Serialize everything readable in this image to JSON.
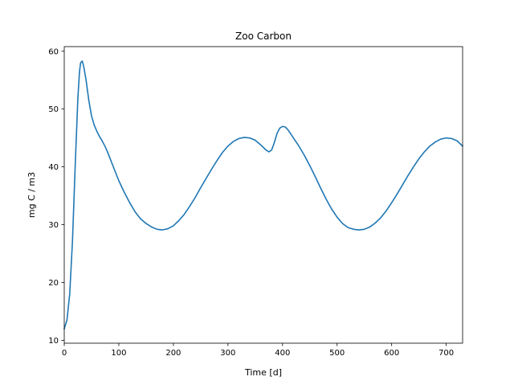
{
  "chart_data": {
    "type": "line",
    "title": "Zoo Carbon",
    "xlabel": "Time [d]",
    "ylabel": "mg C / m3",
    "xlim": [
      0,
      730
    ],
    "ylim": [
      9.5,
      60.8
    ],
    "xticks": [
      0,
      100,
      200,
      300,
      400,
      500,
      600,
      700
    ],
    "yticks": [
      10,
      20,
      30,
      40,
      50,
      60
    ],
    "grid": false,
    "legend": "none",
    "series": [
      {
        "color": "#1f77b4",
        "x": [
          0,
          5,
          10,
          15,
          20,
          25,
          28,
          30,
          33,
          36,
          40,
          45,
          50,
          55,
          60,
          65,
          70,
          75,
          80,
          90,
          100,
          110,
          120,
          130,
          140,
          150,
          160,
          170,
          180,
          190,
          200,
          210,
          220,
          230,
          240,
          250,
          260,
          270,
          280,
          290,
          300,
          310,
          320,
          330,
          340,
          350,
          360,
          370,
          375,
          380,
          385,
          390,
          395,
          400,
          405,
          410,
          415,
          420,
          430,
          440,
          450,
          460,
          470,
          480,
          490,
          500,
          510,
          520,
          530,
          540,
          550,
          560,
          570,
          580,
          590,
          600,
          610,
          620,
          630,
          640,
          650,
          660,
          670,
          680,
          690,
          700,
          710,
          720,
          730
        ],
        "y": [
          12.0,
          13.5,
          18.0,
          27.0,
          40.0,
          52.0,
          56.5,
          58.0,
          58.3,
          57.2,
          55.0,
          51.5,
          48.8,
          47.2,
          46.1,
          45.2,
          44.4,
          43.5,
          42.4,
          40.0,
          37.6,
          35.6,
          33.8,
          32.2,
          31.0,
          30.2,
          29.6,
          29.2,
          29.1,
          29.3,
          29.8,
          30.7,
          31.8,
          33.2,
          34.7,
          36.4,
          38.0,
          39.6,
          41.1,
          42.5,
          43.6,
          44.4,
          44.9,
          45.1,
          45.0,
          44.6,
          43.8,
          42.9,
          42.6,
          42.9,
          44.2,
          45.8,
          46.7,
          47.0,
          46.9,
          46.4,
          45.7,
          45.0,
          43.6,
          42.0,
          40.2,
          38.3,
          36.3,
          34.4,
          32.7,
          31.3,
          30.2,
          29.5,
          29.2,
          29.1,
          29.2,
          29.6,
          30.3,
          31.2,
          32.4,
          33.8,
          35.3,
          36.9,
          38.5,
          40.0,
          41.4,
          42.6,
          43.6,
          44.3,
          44.8,
          45.0,
          44.9,
          44.5,
          43.6
        ]
      }
    ]
  }
}
